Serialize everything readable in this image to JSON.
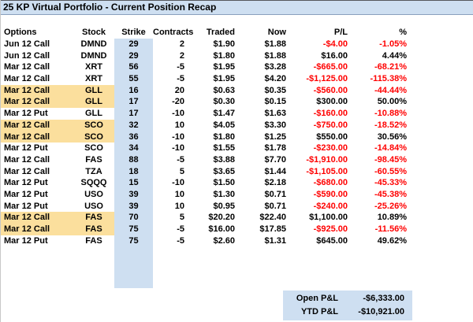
{
  "title": "25 KP Virtual Portfolio - Current Position Recap",
  "colors": {
    "accent_blue": "#CEDFF1",
    "highlight_tan": "#FBDF9D",
    "negative_red": "#FF0000"
  },
  "table": {
    "columns": [
      "Options",
      "Stock",
      "Strike",
      "Contracts",
      "Traded",
      "Now",
      "P/L",
      "%"
    ],
    "rows": [
      {
        "options": "Jun 12 Call",
        "stock": "DMND",
        "strike": "29",
        "contracts": "2",
        "traded": "$1.90",
        "now": "$1.88",
        "pl": "-$4.00",
        "pct": "-1.05%",
        "highlight": false
      },
      {
        "options": "Jun 12 Call",
        "stock": "DMND",
        "strike": "29",
        "contracts": "2",
        "traded": "$1.80",
        "now": "$1.88",
        "pl": "$16.00",
        "pct": "4.44%",
        "highlight": false
      },
      {
        "options": "Mar 12 Call",
        "stock": "XRT",
        "strike": "56",
        "contracts": "-5",
        "traded": "$1.95",
        "now": "$3.28",
        "pl": "-$665.00",
        "pct": "-68.21%",
        "highlight": false
      },
      {
        "options": "Mar 12 Call",
        "stock": "XRT",
        "strike": "55",
        "contracts": "-5",
        "traded": "$1.95",
        "now": "$4.20",
        "pl": "-$1,125.00",
        "pct": "-115.38%",
        "highlight": false
      },
      {
        "options": "Mar 12 Call",
        "stock": "GLL",
        "strike": "16",
        "contracts": "20",
        "traded": "$0.63",
        "now": "$0.35",
        "pl": "-$560.00",
        "pct": "-44.44%",
        "highlight": true
      },
      {
        "options": "Mar 12 Call",
        "stock": "GLL",
        "strike": "17",
        "contracts": "-20",
        "traded": "$0.30",
        "now": "$0.15",
        "pl": "$300.00",
        "pct": "50.00%",
        "highlight": true
      },
      {
        "options": "Mar 12 Put",
        "stock": "GLL",
        "strike": "17",
        "contracts": "-10",
        "traded": "$1.47",
        "now": "$1.63",
        "pl": "-$160.00",
        "pct": "-10.88%",
        "highlight": false
      },
      {
        "options": "Mar 12 Call",
        "stock": "SCO",
        "strike": "32",
        "contracts": "10",
        "traded": "$4.05",
        "now": "$3.30",
        "pl": "-$750.00",
        "pct": "-18.52%",
        "highlight": true
      },
      {
        "options": "Mar 12 Call",
        "stock": "SCO",
        "strike": "36",
        "contracts": "-10",
        "traded": "$1.80",
        "now": "$1.25",
        "pl": "$550.00",
        "pct": "30.56%",
        "highlight": true
      },
      {
        "options": "Mar 12 Put",
        "stock": "SCO",
        "strike": "34",
        "contracts": "-10",
        "traded": "$1.55",
        "now": "$1.78",
        "pl": "-$230.00",
        "pct": "-14.84%",
        "highlight": false
      },
      {
        "options": "Mar 12 Call",
        "stock": "FAS",
        "strike": "88",
        "contracts": "-5",
        "traded": "$3.88",
        "now": "$7.70",
        "pl": "-$1,910.00",
        "pct": "-98.45%",
        "highlight": false
      },
      {
        "options": "Mar 12 Call",
        "stock": "TZA",
        "strike": "18",
        "contracts": "5",
        "traded": "$3.65",
        "now": "$1.44",
        "pl": "-$1,105.00",
        "pct": "-60.55%",
        "highlight": false
      },
      {
        "options": "Mar 12 Put",
        "stock": "SQQQ",
        "strike": "15",
        "contracts": "-10",
        "traded": "$1.50",
        "now": "$2.18",
        "pl": "-$680.00",
        "pct": "-45.33%",
        "highlight": false
      },
      {
        "options": "Mar 12 Put",
        "stock": "USO",
        "strike": "39",
        "contracts": "10",
        "traded": "$1.30",
        "now": "$0.71",
        "pl": "-$590.00",
        "pct": "-45.38%",
        "highlight": false
      },
      {
        "options": "Mar 12 Put",
        "stock": "USO",
        "strike": "39",
        "contracts": "10",
        "traded": "$0.95",
        "now": "$0.71",
        "pl": "-$240.00",
        "pct": "-25.26%",
        "highlight": false
      },
      {
        "options": "Mar 12 Call",
        "stock": "FAS",
        "strike": "70",
        "contracts": "5",
        "traded": "$20.20",
        "now": "$22.40",
        "pl": "$1,100.00",
        "pct": "10.89%",
        "highlight": true
      },
      {
        "options": "Mar 12 Call",
        "stock": "FAS",
        "strike": "75",
        "contracts": "-5",
        "traded": "$16.00",
        "now": "$17.85",
        "pl": "-$925.00",
        "pct": "-11.56%",
        "highlight": true
      },
      {
        "options": "Mar 12 Put",
        "stock": "FAS",
        "strike": "75",
        "contracts": "-5",
        "traded": "$2.60",
        "now": "$1.31",
        "pl": "$645.00",
        "pct": "49.62%",
        "highlight": false
      }
    ]
  },
  "summary": {
    "open_label": "Open P&L",
    "open_value": "-$6,333.00",
    "ytd_label": "YTD P&L",
    "ytd_value": "-$10,921.00"
  }
}
